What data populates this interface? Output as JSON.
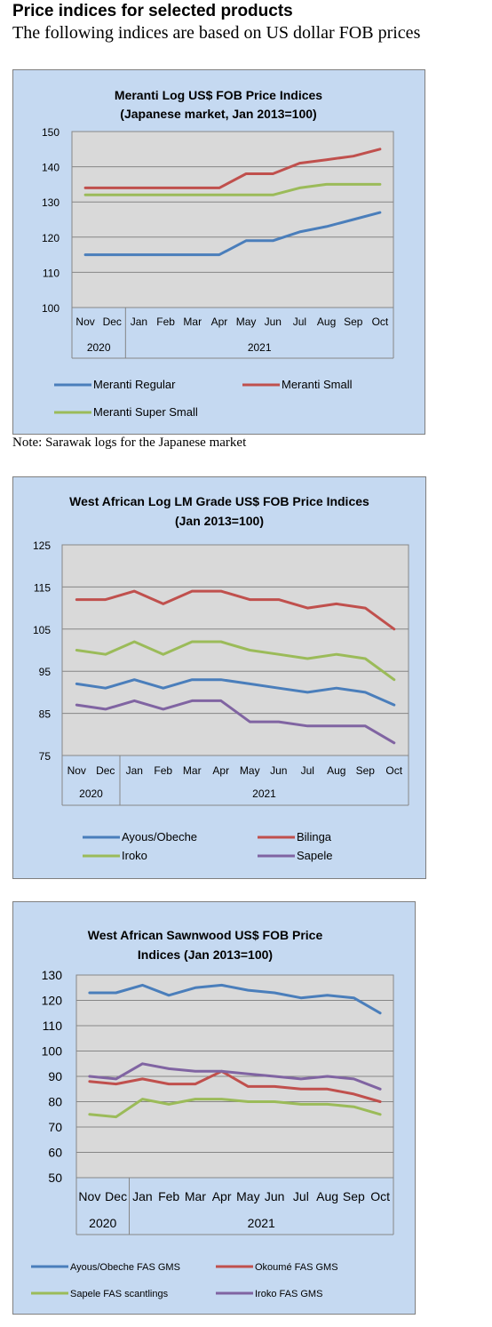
{
  "page": {
    "heading": "Price indices for selected products",
    "subheading": "The following indices are based on US dollar FOB prices",
    "note": "Note: Sarawak logs for the Japanese market"
  },
  "months": [
    "Nov",
    "Dec",
    "Jan",
    "Feb",
    "Mar",
    "Apr",
    "May",
    "Jun",
    "Jul",
    "Aug",
    "Sep",
    "Oct"
  ],
  "chart_data": [
    {
      "type": "line",
      "title": "Meranti Log US$ FOB Price Indices",
      "subtitle": "(Japanese market, Jan 2013=100)",
      "categories": [
        "Nov",
        "Dec",
        "Jan",
        "Feb",
        "Mar",
        "Apr",
        "May",
        "Jun",
        "Jul",
        "Aug",
        "Sep",
        "Oct"
      ],
      "years": [
        "2020",
        "2021"
      ],
      "ylim": [
        100,
        150
      ],
      "yticks": [
        "100",
        "110",
        "120",
        "130",
        "140",
        "150"
      ],
      "grid": true,
      "legend_position": "bottom",
      "series": [
        {
          "name": "Meranti Regular",
          "color": "#4a7ebb",
          "values": [
            115,
            115,
            115,
            115,
            115,
            115,
            119,
            119,
            121.5,
            123,
            125,
            127
          ]
        },
        {
          "name": "Meranti Small",
          "color": "#c0504d",
          "values": [
            134,
            134,
            134,
            134,
            134,
            134,
            138,
            138,
            141,
            142,
            143,
            145
          ]
        },
        {
          "name": "Meranti Super Small",
          "color": "#9bbb59",
          "values": [
            132,
            132,
            132,
            132,
            132,
            132,
            132,
            132,
            134,
            135,
            135,
            135
          ]
        }
      ]
    },
    {
      "type": "line",
      "title": "West African Log LM Grade US$ FOB Price Indices",
      "subtitle": "(Jan 2013=100)",
      "categories": [
        "Nov",
        "Dec",
        "Jan",
        "Feb",
        "Mar",
        "Apr",
        "May",
        "Jun",
        "Jul",
        "Aug",
        "Sep",
        "Oct"
      ],
      "years": [
        "2020",
        "2021"
      ],
      "ylim": [
        75,
        125
      ],
      "yticks": [
        "75",
        "85",
        "95",
        "105",
        "115",
        "125"
      ],
      "grid": true,
      "legend_position": "bottom",
      "series": [
        {
          "name": "Ayous/Obeche",
          "color": "#4a7ebb",
          "values": [
            92,
            91,
            93,
            91,
            93,
            93,
            92,
            91,
            90,
            91,
            90,
            87
          ]
        },
        {
          "name": "Bilinga",
          "color": "#c0504d",
          "values": [
            112,
            112,
            114,
            111,
            114,
            114,
            112,
            112,
            110,
            111,
            110,
            105
          ]
        },
        {
          "name": "Iroko",
          "color": "#9bbb59",
          "values": [
            100,
            99,
            102,
            99,
            102,
            102,
            100,
            99,
            98,
            99,
            98,
            93
          ]
        },
        {
          "name": "Sapele",
          "color": "#8064a2",
          "values": [
            87,
            86,
            88,
            86,
            88,
            88,
            83,
            83,
            82,
            82,
            82,
            78
          ]
        }
      ]
    },
    {
      "type": "line",
      "title": "West African Sawnwood US$ FOB Price",
      "subtitle": "Indices (Jan 2013=100)",
      "categories": [
        "Nov",
        "Dec",
        "Jan",
        "Feb",
        "Mar",
        "Apr",
        "May",
        "Jun",
        "Jul",
        "Aug",
        "Sep",
        "Oct"
      ],
      "years": [
        "2020",
        "2021"
      ],
      "ylim": [
        50,
        130
      ],
      "yticks": [
        "50",
        "60",
        "70",
        "80",
        "90",
        "100",
        "110",
        "120",
        "130"
      ],
      "grid": true,
      "legend_position": "bottom",
      "series": [
        {
          "name": "Ayous/Obeche  FAS GMS",
          "color": "#4a7ebb",
          "values": [
            123,
            123,
            126,
            122,
            125,
            126,
            124,
            123,
            121,
            122,
            121,
            115
          ]
        },
        {
          "name": "Okoumé  FAS GMS",
          "color": "#c0504d",
          "values": [
            88,
            87,
            89,
            87,
            87,
            92,
            86,
            86,
            85,
            85,
            83,
            80
          ]
        },
        {
          "name": "Sapele FAS scantlings",
          "color": "#9bbb59",
          "values": [
            75,
            74,
            81,
            79,
            81,
            81,
            80,
            80,
            79,
            79,
            78,
            75
          ]
        },
        {
          "name": "Iroko FAS GMS",
          "color": "#8064a2",
          "values": [
            90,
            89,
            95,
            93,
            92,
            92,
            91,
            90,
            89,
            90,
            89,
            85
          ]
        }
      ]
    }
  ]
}
